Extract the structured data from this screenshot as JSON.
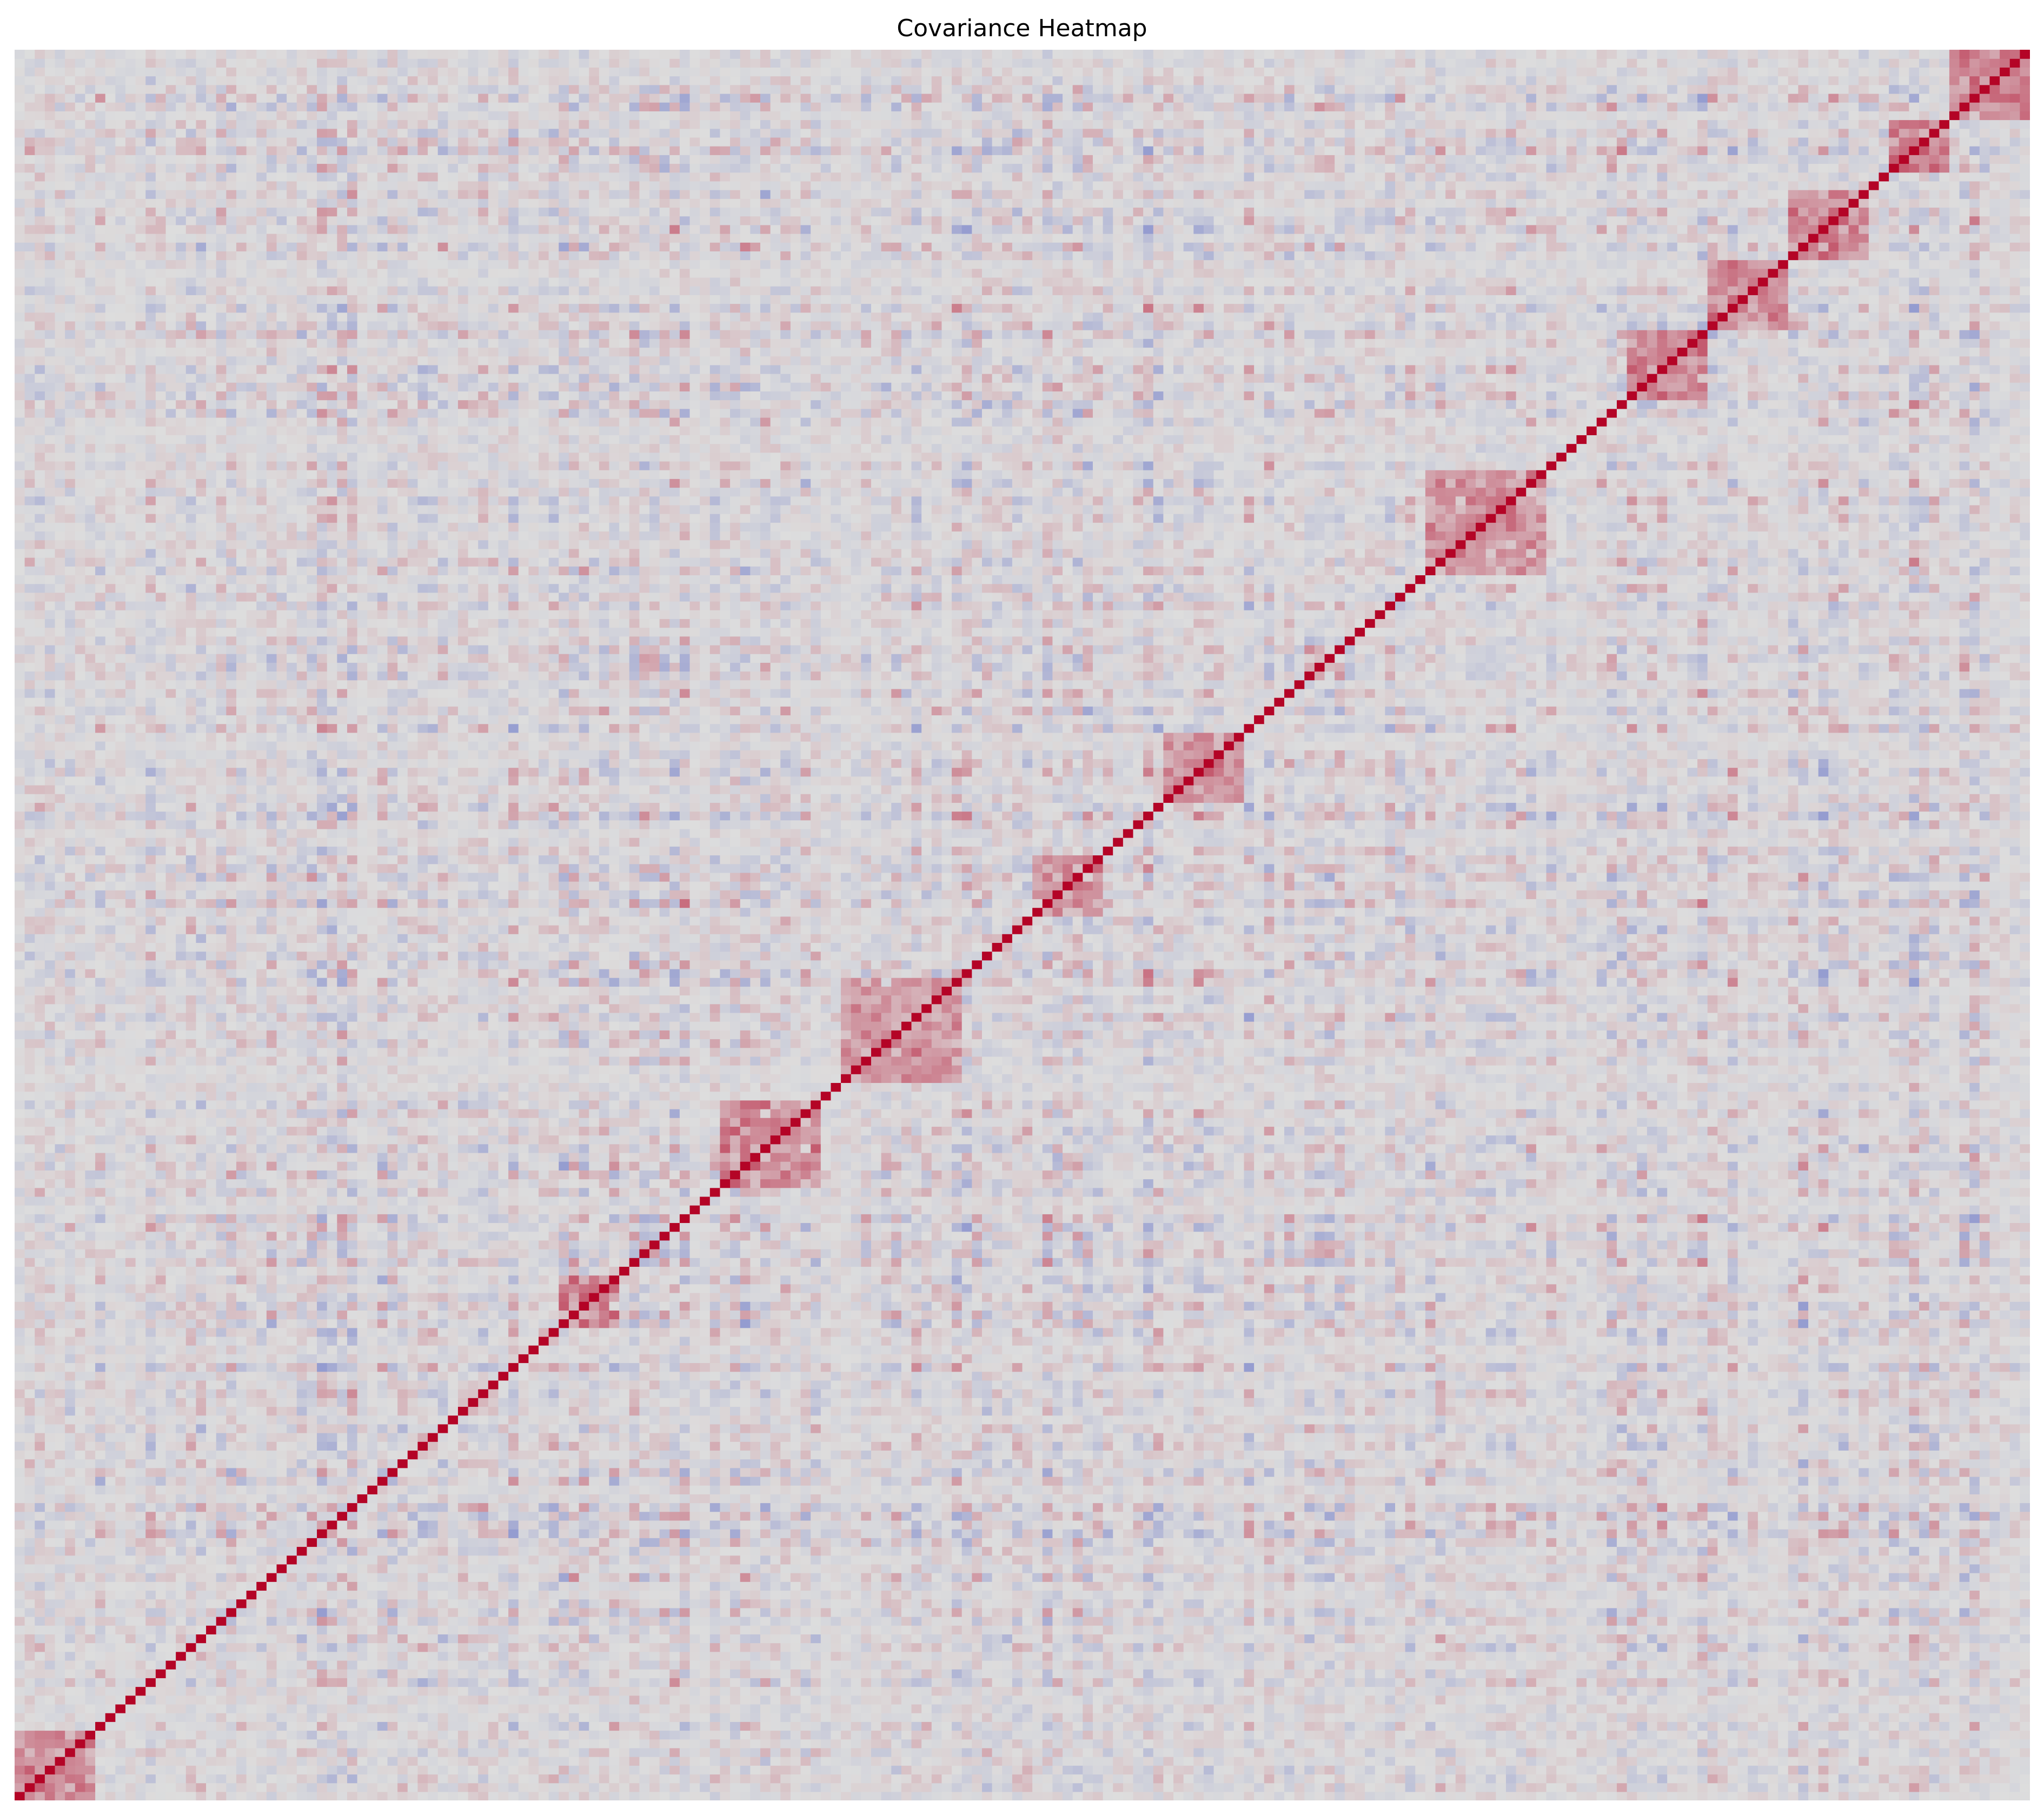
{
  "chart_data": {
    "type": "heatmap",
    "title": "Covariance Heatmap",
    "xlabel": "",
    "ylabel": "",
    "grid": false,
    "colorbar": false,
    "axes_visible": false,
    "matrix_size": 200,
    "colormap": "coolwarm",
    "colors": {
      "low": "#3b4cc0",
      "mid": "#dddddd",
      "high": "#b40426"
    },
    "value_range": [
      -1,
      1
    ],
    "diagonal_value": 1.0,
    "off_diagonal_range": [
      -0.45,
      0.6
    ],
    "diagonal_orientation": "bottom-left to top-right",
    "correlated_blocks": [
      {
        "start": 0,
        "end": 8,
        "value": 0.45
      },
      {
        "start": 54,
        "end": 60,
        "value": 0.55
      },
      {
        "start": 70,
        "end": 80,
        "value": 0.45
      },
      {
        "start": 82,
        "end": 94,
        "value": 0.4
      },
      {
        "start": 101,
        "end": 108,
        "value": 0.4
      },
      {
        "start": 114,
        "end": 122,
        "value": 0.4
      },
      {
        "start": 140,
        "end": 152,
        "value": 0.4
      },
      {
        "start": 160,
        "end": 168,
        "value": 0.45
      },
      {
        "start": 168,
        "end": 176,
        "value": 0.45
      },
      {
        "start": 176,
        "end": 184,
        "value": 0.45
      },
      {
        "start": 186,
        "end": 192,
        "value": 0.5
      },
      {
        "start": 192,
        "end": 200,
        "value": 0.5
      }
    ]
  }
}
